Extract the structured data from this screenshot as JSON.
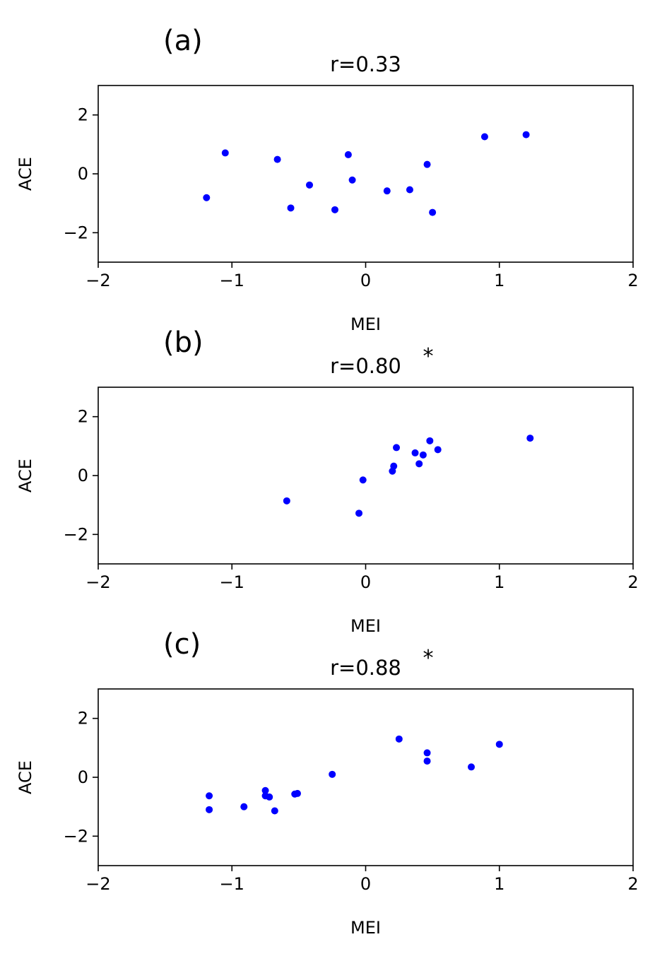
{
  "chart_data": [
    {
      "type": "scatter",
      "panel_label": "(a)",
      "title": "r=0.33",
      "significance_mark": "",
      "xlabel": "MEI",
      "ylabel": "ACE",
      "xlim": [
        -2,
        2
      ],
      "ylim": [
        -3,
        3
      ],
      "xticks": [
        -2,
        -1,
        0,
        1,
        2
      ],
      "yticks": [
        -2,
        0,
        2
      ],
      "color": "#0000ff",
      "points": [
        {
          "x": -1.19,
          "y": -0.81
        },
        {
          "x": -1.05,
          "y": 0.71
        },
        {
          "x": -0.66,
          "y": 0.49
        },
        {
          "x": -0.56,
          "y": -1.16
        },
        {
          "x": -0.42,
          "y": -0.38
        },
        {
          "x": -0.23,
          "y": -1.22
        },
        {
          "x": -0.13,
          "y": 0.65
        },
        {
          "x": -0.1,
          "y": -0.21
        },
        {
          "x": 0.16,
          "y": -0.58
        },
        {
          "x": 0.33,
          "y": -0.54
        },
        {
          "x": 0.46,
          "y": 0.32
        },
        {
          "x": 0.5,
          "y": -1.31
        },
        {
          "x": 0.89,
          "y": 1.26
        },
        {
          "x": 1.2,
          "y": 1.33
        }
      ]
    },
    {
      "type": "scatter",
      "panel_label": "(b)",
      "title": "r=0.80",
      "significance_mark": "*",
      "xlabel": "MEI",
      "ylabel": "ACE",
      "xlim": [
        -2,
        2
      ],
      "ylim": [
        -3,
        3
      ],
      "xticks": [
        -2,
        -1,
        0,
        1,
        2
      ],
      "yticks": [
        -2,
        0,
        2
      ],
      "color": "#0000ff",
      "points": [
        {
          "x": -0.59,
          "y": -0.86
        },
        {
          "x": -0.05,
          "y": -1.28
        },
        {
          "x": -0.02,
          "y": -0.15
        },
        {
          "x": 0.2,
          "y": 0.15
        },
        {
          "x": 0.21,
          "y": 0.32
        },
        {
          "x": 0.23,
          "y": 0.95
        },
        {
          "x": 0.37,
          "y": 0.77
        },
        {
          "x": 0.4,
          "y": 0.4
        },
        {
          "x": 0.43,
          "y": 0.7
        },
        {
          "x": 0.48,
          "y": 1.18
        },
        {
          "x": 0.54,
          "y": 0.88
        },
        {
          "x": 1.23,
          "y": 1.27
        }
      ]
    },
    {
      "type": "scatter",
      "panel_label": "(c)",
      "title": "r=0.88",
      "significance_mark": "*",
      "xlabel": "MEI",
      "ylabel": "ACE",
      "xlim": [
        -2,
        2
      ],
      "ylim": [
        -3,
        3
      ],
      "xticks": [
        -2,
        -1,
        0,
        1,
        2
      ],
      "yticks": [
        -2,
        0,
        2
      ],
      "color": "#0000ff",
      "points": [
        {
          "x": -1.17,
          "y": -0.63
        },
        {
          "x": -1.17,
          "y": -1.1
        },
        {
          "x": -0.91,
          "y": -1.0
        },
        {
          "x": -0.75,
          "y": -0.45
        },
        {
          "x": -0.75,
          "y": -0.63
        },
        {
          "x": -0.72,
          "y": -0.67
        },
        {
          "x": -0.68,
          "y": -1.14
        },
        {
          "x": -0.53,
          "y": -0.57
        },
        {
          "x": -0.51,
          "y": -0.55
        },
        {
          "x": -0.25,
          "y": 0.1
        },
        {
          "x": 0.25,
          "y": 1.3
        },
        {
          "x": 0.46,
          "y": 0.55
        },
        {
          "x": 0.46,
          "y": 0.83
        },
        {
          "x": 0.79,
          "y": 0.35
        },
        {
          "x": 1.0,
          "y": 1.12
        }
      ]
    }
  ]
}
